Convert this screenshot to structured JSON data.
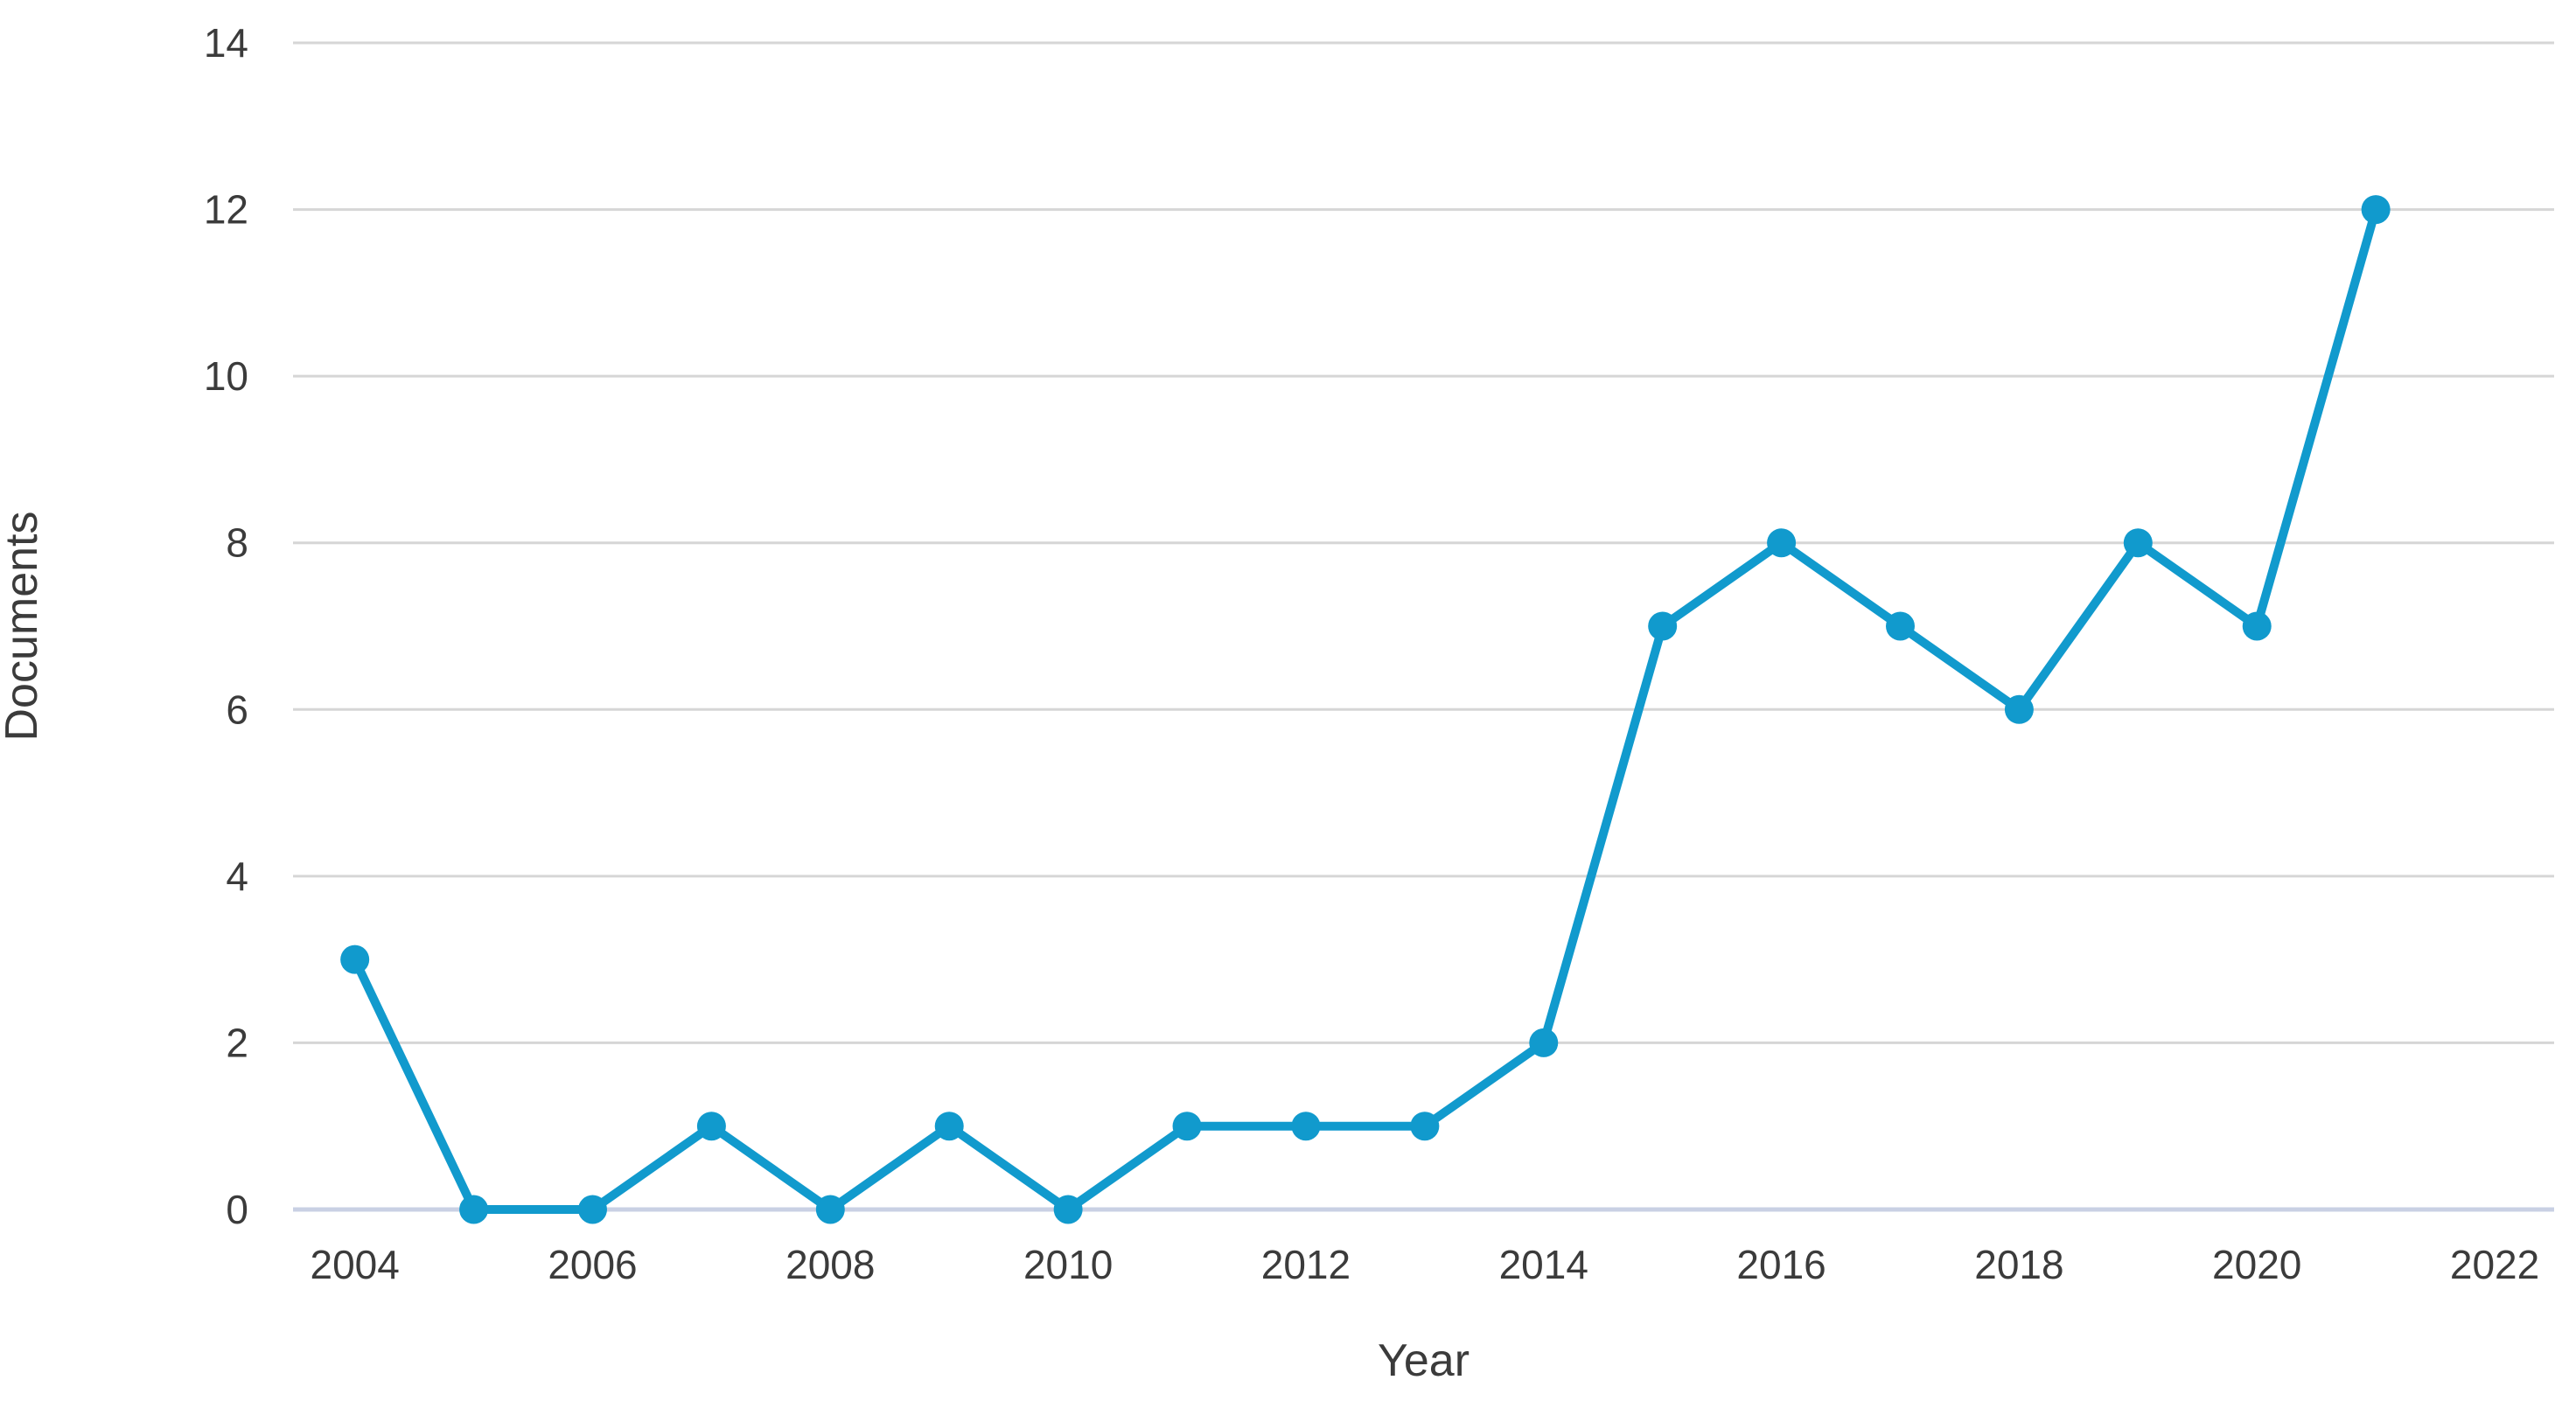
{
  "page": {
    "background_color": "#ffffff"
  },
  "chart_data": {
    "type": "line",
    "title": "",
    "xlabel": "Year",
    "ylabel": "Documents",
    "x": [
      2004,
      2005,
      2006,
      2007,
      2008,
      2009,
      2010,
      2011,
      2012,
      2013,
      2014,
      2015,
      2016,
      2017,
      2018,
      2019,
      2020,
      2021
    ],
    "series": [
      {
        "name": "Documents",
        "values": [
          3,
          0,
          0,
          1,
          0,
          1,
          0,
          1,
          1,
          1,
          2,
          7,
          8,
          7,
          6,
          8,
          7,
          12
        ]
      }
    ],
    "x_tick_labels": [
      "2004",
      "2006",
      "2008",
      "2010",
      "2012",
      "2014",
      "2016",
      "2018",
      "2020",
      "2022"
    ],
    "x_tick_values": [
      2004,
      2006,
      2008,
      2010,
      2012,
      2014,
      2016,
      2018,
      2020,
      2022
    ],
    "y_tick_labels": [
      "0",
      "2",
      "4",
      "6",
      "8",
      "10",
      "12",
      "14"
    ],
    "y_tick_values": [
      0,
      2,
      4,
      6,
      8,
      10,
      12,
      14
    ],
    "xlim": [
      2003.48,
      2022.5
    ],
    "ylim": [
      0,
      14
    ],
    "grid": "horizontal",
    "legend_position": "none",
    "marker": "circle",
    "colors": {
      "line": "#119acd",
      "marker": "#119acd",
      "gridline": "#d6d6d6",
      "baseline": "#c9d0e4",
      "tick_text": "#3b3b3b",
      "axis_title_text": "#3b3b3b"
    }
  }
}
